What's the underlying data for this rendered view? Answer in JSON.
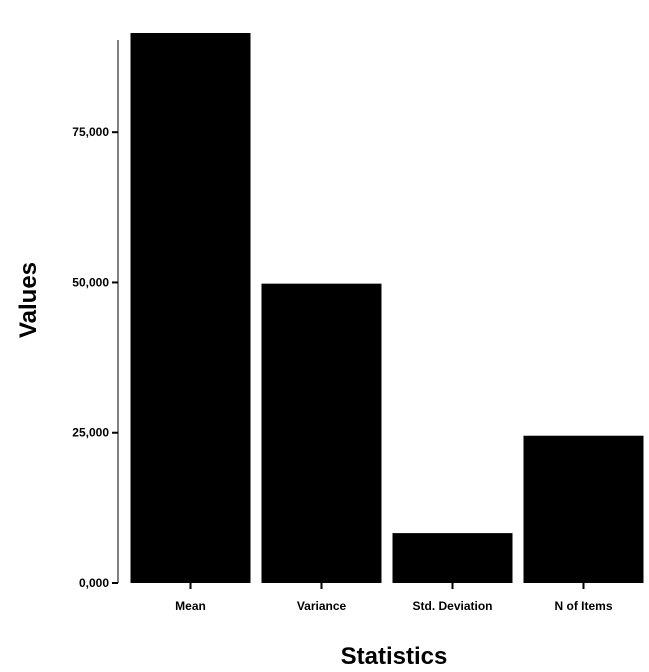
{
  "chart_data": {
    "type": "bar",
    "title": "",
    "xlabel": "Statistics",
    "ylabel": "Values",
    "categories": [
      "Mean",
      "Variance",
      "Std. Deviation",
      "N of Items"
    ],
    "values": [
      91.5,
      49.8,
      8.3,
      24.5
    ],
    "ylim": [
      0,
      92
    ],
    "yticks": [
      0,
      25,
      50,
      75
    ],
    "ytick_labels": [
      "0,000",
      "25,000",
      "50,000",
      "75,000"
    ],
    "bar_color": "#000000",
    "grid": false,
    "legend": "none"
  }
}
